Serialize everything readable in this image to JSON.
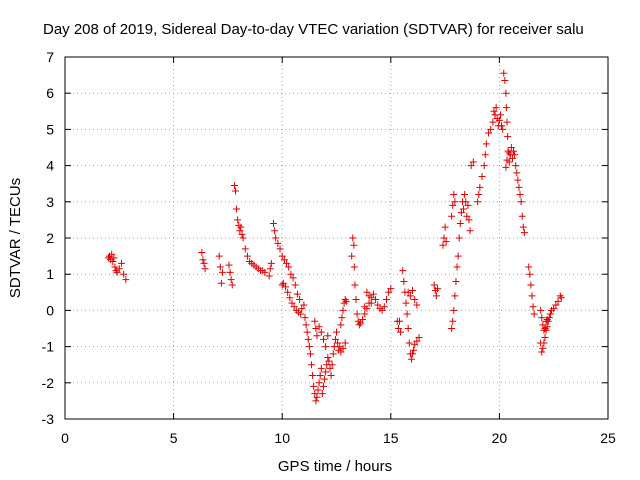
{
  "colors": {
    "series": "#e00000",
    "axes": "#000000",
    "grid": "#a0a0a0"
  },
  "chart_data": {
    "type": "scatter",
    "title": "Day 208 of 2019, Sidereal Day-to-day VTEC variation (SDTVAR) for receiver salu",
    "xlabel": "GPS time / hours",
    "ylabel": "SDTVAR / TECUs",
    "xlim": [
      0,
      25
    ],
    "ylim": [
      -3,
      7
    ],
    "xticks": [
      0,
      5,
      10,
      15,
      20,
      25
    ],
    "yticks": [
      -3,
      -2,
      -1,
      0,
      1,
      2,
      3,
      4,
      5,
      6,
      7
    ],
    "grid": true,
    "marker": "+",
    "series": [
      {
        "name": "SDTVAR",
        "points": [
          [
            2.0,
            1.45
          ],
          [
            2.05,
            1.5
          ],
          [
            2.1,
            1.4
          ],
          [
            2.15,
            1.55
          ],
          [
            2.2,
            1.35
          ],
          [
            2.25,
            1.45
          ],
          [
            2.3,
            1.2
          ],
          [
            2.35,
            1.1
          ],
          [
            2.4,
            1.05
          ],
          [
            2.5,
            1.15
          ],
          [
            2.6,
            1.3
          ],
          [
            2.7,
            1.0
          ],
          [
            2.8,
            0.85
          ],
          [
            6.3,
            1.6
          ],
          [
            6.35,
            1.4
          ],
          [
            6.4,
            1.3
          ],
          [
            6.45,
            1.15
          ],
          [
            7.1,
            1.5
          ],
          [
            7.15,
            1.2
          ],
          [
            7.2,
            0.75
          ],
          [
            7.25,
            1.05
          ],
          [
            7.55,
            1.25
          ],
          [
            7.6,
            1.05
          ],
          [
            7.65,
            0.85
          ],
          [
            7.7,
            0.7
          ],
          [
            7.8,
            3.45
          ],
          [
            7.85,
            3.3
          ],
          [
            7.9,
            2.8
          ],
          [
            7.95,
            2.5
          ],
          [
            8.0,
            2.35
          ],
          [
            8.05,
            2.2
          ],
          [
            8.1,
            2.3
          ],
          [
            8.15,
            2.1
          ],
          [
            8.2,
            2.0
          ],
          [
            8.3,
            1.7
          ],
          [
            8.4,
            1.5
          ],
          [
            8.5,
            1.35
          ],
          [
            8.6,
            1.3
          ],
          [
            8.7,
            1.25
          ],
          [
            8.8,
            1.2
          ],
          [
            8.9,
            1.15
          ],
          [
            9.0,
            1.1
          ],
          [
            9.1,
            1.1
          ],
          [
            9.2,
            1.05
          ],
          [
            9.4,
            0.95
          ],
          [
            9.45,
            1.15
          ],
          [
            9.5,
            1.3
          ],
          [
            9.6,
            2.4
          ],
          [
            9.65,
            2.2
          ],
          [
            9.7,
            2.0
          ],
          [
            9.8,
            1.85
          ],
          [
            9.9,
            1.7
          ],
          [
            10.0,
            1.5
          ],
          [
            10.1,
            1.4
          ],
          [
            10.2,
            1.3
          ],
          [
            10.3,
            1.2
          ],
          [
            10.4,
            1.0
          ],
          [
            10.5,
            0.9
          ],
          [
            10.6,
            0.7
          ],
          [
            10.7,
            0.45
          ],
          [
            10.8,
            0.3
          ],
          [
            10.9,
            0.05
          ],
          [
            11.0,
            0.15
          ],
          [
            10.0,
            0.7
          ],
          [
            10.05,
            0.75
          ],
          [
            10.15,
            0.65
          ],
          [
            10.25,
            0.5
          ],
          [
            10.35,
            0.35
          ],
          [
            10.45,
            0.2
          ],
          [
            10.55,
            0.1
          ],
          [
            10.65,
            0.0
          ],
          [
            10.75,
            -0.05
          ],
          [
            10.85,
            -0.1
          ],
          [
            11.05,
            -0.2
          ],
          [
            11.1,
            -0.4
          ],
          [
            11.15,
            -0.6
          ],
          [
            11.2,
            -0.8
          ],
          [
            11.25,
            -1.0
          ],
          [
            11.3,
            -1.2
          ],
          [
            11.35,
            -1.5
          ],
          [
            11.4,
            -1.8
          ],
          [
            11.45,
            -2.1
          ],
          [
            11.5,
            -2.3
          ],
          [
            11.55,
            -2.5
          ],
          [
            11.6,
            -2.4
          ],
          [
            11.65,
            -2.2
          ],
          [
            11.7,
            -2.0
          ],
          [
            11.75,
            -1.8
          ],
          [
            11.8,
            -1.6
          ],
          [
            11.85,
            -2.3
          ],
          [
            11.9,
            -2.1
          ],
          [
            11.95,
            -1.9
          ],
          [
            12.0,
            -1.7
          ],
          [
            12.05,
            -1.5
          ],
          [
            12.1,
            -1.3
          ],
          [
            12.15,
            -1.4
          ],
          [
            12.2,
            -1.6
          ],
          [
            12.25,
            -1.8
          ],
          [
            12.3,
            -1.5
          ],
          [
            12.35,
            -1.2
          ],
          [
            12.4,
            -1.0
          ],
          [
            12.45,
            -0.8
          ],
          [
            12.5,
            -0.6
          ],
          [
            12.55,
            -0.9
          ],
          [
            12.6,
            -1.1
          ],
          [
            12.65,
            -1.0
          ],
          [
            12.7,
            -1.15
          ],
          [
            12.8,
            -1.05
          ],
          [
            12.9,
            -0.9
          ],
          [
            11.5,
            -0.3
          ],
          [
            11.55,
            -0.5
          ],
          [
            11.6,
            -0.7
          ],
          [
            11.7,
            -0.45
          ],
          [
            11.8,
            -0.6
          ],
          [
            11.9,
            -0.8
          ],
          [
            12.0,
            -1.0
          ],
          [
            12.1,
            -0.7
          ],
          [
            12.7,
            -0.4
          ],
          [
            12.75,
            -0.2
          ],
          [
            12.8,
            0.0
          ],
          [
            12.85,
            0.2
          ],
          [
            12.9,
            0.3
          ],
          [
            12.95,
            0.25
          ],
          [
            13.2,
            1.5
          ],
          [
            13.25,
            2.0
          ],
          [
            13.3,
            1.8
          ],
          [
            13.32,
            1.2
          ],
          [
            13.35,
            0.7
          ],
          [
            13.4,
            0.3
          ],
          [
            13.45,
            -0.1
          ],
          [
            13.5,
            -0.3
          ],
          [
            13.55,
            -0.4
          ],
          [
            13.6,
            -0.35
          ],
          [
            13.7,
            -0.25
          ],
          [
            13.8,
            -0.1
          ],
          [
            13.9,
            0.05
          ],
          [
            14.0,
            0.2
          ],
          [
            14.1,
            0.35
          ],
          [
            14.2,
            0.45
          ],
          [
            14.3,
            0.3
          ],
          [
            14.4,
            0.15
          ],
          [
            14.5,
            0.05
          ],
          [
            14.6,
            0.0
          ],
          [
            14.7,
            0.1
          ],
          [
            14.8,
            0.3
          ],
          [
            14.9,
            0.5
          ],
          [
            15.0,
            0.6
          ],
          [
            13.8,
            0.1
          ],
          [
            13.9,
            0.5
          ],
          [
            14.0,
            0.4
          ],
          [
            14.1,
            0.2
          ],
          [
            15.3,
            -0.3
          ],
          [
            15.35,
            -0.5
          ],
          [
            15.4,
            -0.3
          ],
          [
            15.45,
            -0.6
          ],
          [
            15.55,
            1.1
          ],
          [
            15.6,
            0.8
          ],
          [
            15.65,
            0.5
          ],
          [
            15.7,
            0.2
          ],
          [
            15.75,
            -0.1
          ],
          [
            15.8,
            -0.5
          ],
          [
            15.85,
            -0.9
          ],
          [
            15.9,
            -1.2
          ],
          [
            15.95,
            -1.35
          ],
          [
            16.0,
            -1.2
          ],
          [
            16.05,
            -1.1
          ],
          [
            16.1,
            -0.95
          ],
          [
            16.2,
            -0.85
          ],
          [
            16.3,
            -0.75
          ],
          [
            15.8,
            0.5
          ],
          [
            15.9,
            0.4
          ],
          [
            16.0,
            0.55
          ],
          [
            16.1,
            0.3
          ],
          [
            16.2,
            0.15
          ],
          [
            17.0,
            0.7
          ],
          [
            17.05,
            0.55
          ],
          [
            17.1,
            0.4
          ],
          [
            17.15,
            0.6
          ],
          [
            17.4,
            1.8
          ],
          [
            17.45,
            2.0
          ],
          [
            17.5,
            2.3
          ],
          [
            17.55,
            1.9
          ],
          [
            17.8,
            -0.5
          ],
          [
            17.85,
            -0.3
          ],
          [
            17.9,
            0.0
          ],
          [
            17.95,
            0.4
          ],
          [
            18.0,
            0.8
          ],
          [
            18.05,
            1.2
          ],
          [
            18.1,
            1.5
          ],
          [
            18.15,
            2.0
          ],
          [
            18.2,
            2.4
          ],
          [
            18.25,
            2.7
          ],
          [
            18.3,
            3.0
          ],
          [
            18.35,
            2.8
          ],
          [
            18.4,
            3.2
          ],
          [
            18.45,
            3.0
          ],
          [
            18.5,
            2.6
          ],
          [
            18.55,
            2.9
          ],
          [
            18.6,
            2.5
          ],
          [
            18.65,
            2.2
          ],
          [
            17.8,
            2.6
          ],
          [
            17.85,
            2.9
          ],
          [
            17.9,
            3.2
          ],
          [
            17.95,
            3.0
          ],
          [
            18.7,
            4.0
          ],
          [
            18.8,
            4.1
          ],
          [
            19.0,
            3.0
          ],
          [
            19.05,
            3.2
          ],
          [
            19.1,
            3.4
          ],
          [
            19.2,
            3.7
          ],
          [
            19.3,
            4.0
          ],
          [
            19.35,
            4.3
          ],
          [
            19.4,
            4.6
          ],
          [
            19.5,
            4.9
          ],
          [
            19.6,
            5.0
          ],
          [
            19.7,
            5.2
          ],
          [
            19.75,
            5.5
          ],
          [
            19.8,
            5.4
          ],
          [
            19.85,
            5.6
          ],
          [
            19.9,
            5.3
          ],
          [
            19.95,
            5.1
          ],
          [
            20.0,
            5.25
          ],
          [
            20.05,
            5.4
          ],
          [
            20.1,
            5.1
          ],
          [
            20.15,
            5.0
          ],
          [
            20.2,
            6.55
          ],
          [
            20.25,
            6.35
          ],
          [
            20.3,
            6.0
          ],
          [
            20.32,
            5.6
          ],
          [
            20.35,
            5.2
          ],
          [
            20.38,
            4.8
          ],
          [
            20.4,
            4.4
          ],
          [
            20.45,
            4.1
          ],
          [
            20.5,
            4.3
          ],
          [
            20.55,
            4.5
          ],
          [
            20.6,
            4.2
          ],
          [
            20.65,
            4.4
          ],
          [
            20.7,
            4.3
          ],
          [
            20.75,
            4.0
          ],
          [
            20.8,
            3.8
          ],
          [
            20.85,
            3.6
          ],
          [
            20.9,
            3.4
          ],
          [
            20.95,
            3.2
          ],
          [
            21.0,
            3.0
          ],
          [
            21.05,
            2.6
          ],
          [
            21.1,
            2.3
          ],
          [
            21.15,
            2.15
          ],
          [
            20.3,
            3.95
          ],
          [
            20.35,
            4.15
          ],
          [
            20.45,
            4.35
          ],
          [
            21.35,
            1.2
          ],
          [
            21.4,
            1.0
          ],
          [
            21.45,
            0.7
          ],
          [
            21.5,
            0.4
          ],
          [
            21.55,
            0.1
          ],
          [
            21.6,
            -0.1
          ],
          [
            21.9,
            -0.9
          ],
          [
            21.95,
            -1.15
          ],
          [
            22.0,
            -1.05
          ],
          [
            22.05,
            -0.9
          ],
          [
            22.1,
            -0.75
          ],
          [
            22.15,
            -0.55
          ],
          [
            22.2,
            -0.45
          ],
          [
            22.25,
            -0.3
          ],
          [
            22.3,
            -0.2
          ],
          [
            22.35,
            -0.1
          ],
          [
            22.4,
            0.0
          ],
          [
            22.5,
            0.05
          ],
          [
            22.6,
            0.15
          ],
          [
            22.7,
            0.25
          ],
          [
            22.8,
            0.4
          ],
          [
            22.85,
            0.35
          ],
          [
            21.9,
            0.0
          ],
          [
            21.95,
            -0.2
          ],
          [
            22.0,
            -0.4
          ],
          [
            22.05,
            -0.55
          ],
          [
            22.1,
            -0.5
          ],
          [
            22.15,
            -0.3
          ],
          [
            22.2,
            -0.25
          ]
        ]
      }
    ]
  }
}
